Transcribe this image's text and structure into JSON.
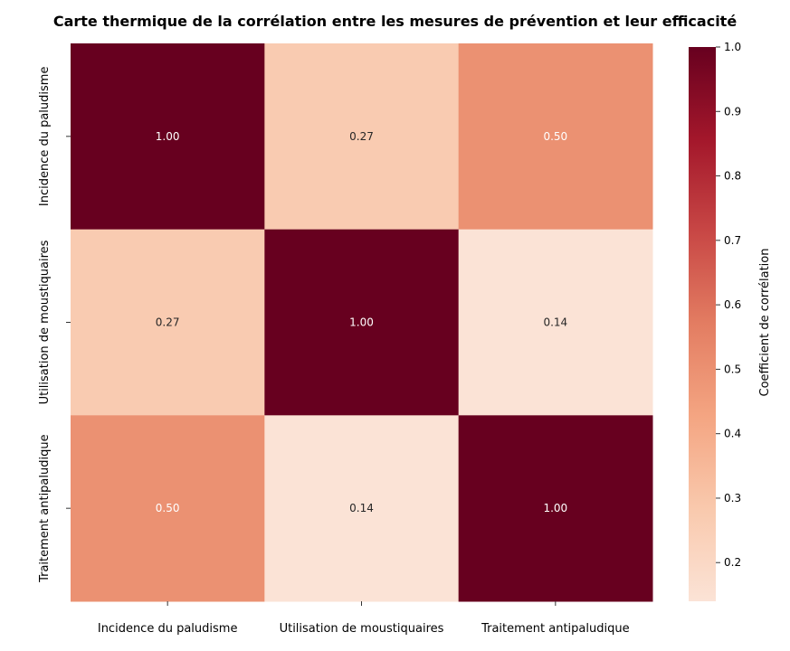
{
  "chart_data": {
    "type": "heatmap",
    "title": "Carte thermique de la corrélation entre les mesures de prévention et leur efficacité",
    "x_labels": [
      "Incidence du paludisme",
      "Utilisation de moustiquaires",
      "Traitement antipaludique"
    ],
    "y_labels": [
      "Incidence du paludisme",
      "Utilisation de moustiquaires",
      "Traitement antipaludique"
    ],
    "values": [
      [
        1.0,
        0.27,
        0.5
      ],
      [
        0.27,
        1.0,
        0.14
      ],
      [
        0.5,
        0.14,
        1.0
      ]
    ],
    "cell_labels": [
      [
        "1.00",
        "0.27",
        "0.50"
      ],
      [
        "0.27",
        "1.00",
        "0.14"
      ],
      [
        "0.50",
        "0.14",
        "1.00"
      ]
    ],
    "colorbar": {
      "label": "Coefficient de corrélation",
      "range": [
        0.14,
        1.0
      ],
      "ticks": [
        0.2,
        0.3,
        0.4,
        0.5,
        0.6,
        0.7,
        0.8,
        0.9,
        1.0
      ],
      "tick_labels": [
        "0.2",
        "0.3",
        "0.4",
        "0.5",
        "0.6",
        "0.7",
        "0.8",
        "0.9",
        "1.0"
      ],
      "colormap": "Reds-like",
      "colors": [
        "#fbe3d6",
        "#f9c9ad",
        "#f4a582",
        "#e37d62",
        "#c84745",
        "#a3172b",
        "#67001f"
      ]
    }
  }
}
